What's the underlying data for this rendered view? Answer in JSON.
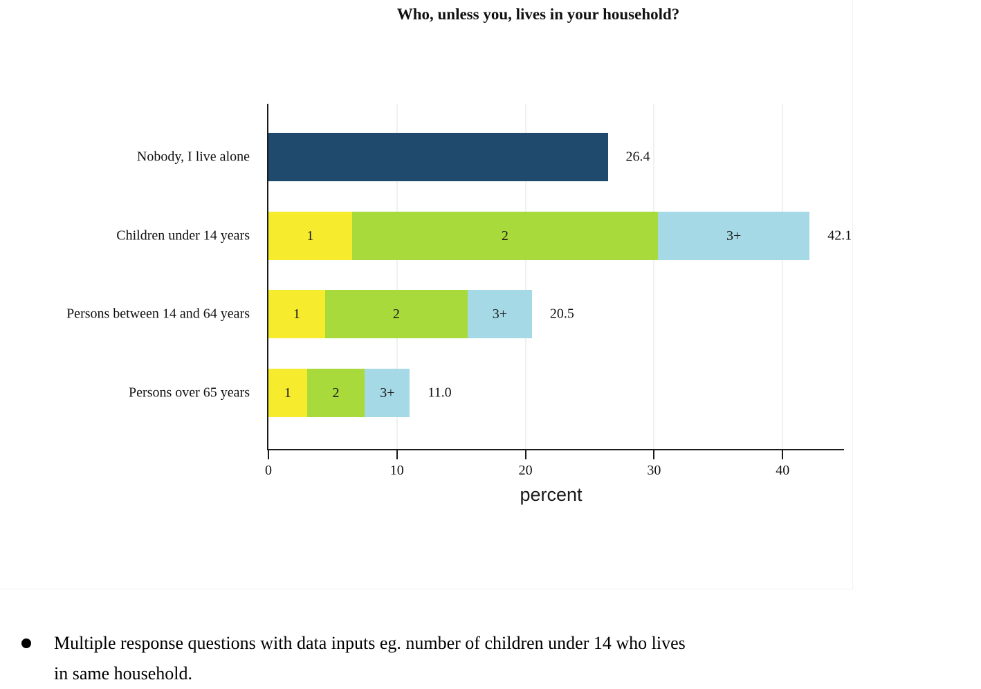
{
  "title": "Who, unless you, lives in your household?",
  "colors": {
    "navy": "#1f4a6e",
    "yellow": "#f7eb2d",
    "green": "#a9da3b",
    "blue": "#a6d9e6",
    "gridline": "#eef2ee",
    "axis": "#1a1a1a"
  },
  "chart_data": {
    "type": "bar",
    "orientation": "horizontal-stacked",
    "title": "Who, unless you, lives in your household?",
    "xlabel": "percent",
    "ylabel": "",
    "xlim": [
      0,
      44
    ],
    "xticks": [
      0,
      10,
      20,
      30,
      40
    ],
    "grid": "vertical",
    "legend": "none",
    "categories": [
      "Nobody, I live alone",
      "Children under 14 years",
      "Persons between 14 and 64 years",
      "Persons over 65 years"
    ],
    "totals": [
      26.4,
      42.1,
      20.5,
      11.0
    ],
    "rows": [
      {
        "category": "Nobody, I live alone",
        "total_label": "26.4",
        "segments": [
          {
            "label": "",
            "value": 26.4,
            "color": "navy"
          }
        ]
      },
      {
        "category": "Children under 14 years",
        "total_label": "42.1",
        "segments": [
          {
            "label": "1",
            "value": 6.5,
            "color": "yellow"
          },
          {
            "label": "2",
            "value": 23.8,
            "color": "green"
          },
          {
            "label": "3+",
            "value": 11.8,
            "color": "blue"
          }
        ]
      },
      {
        "category": "Persons between 14 and 64 years",
        "total_label": "20.5",
        "segments": [
          {
            "label": "1",
            "value": 4.4,
            "color": "yellow"
          },
          {
            "label": "2",
            "value": 11.1,
            "color": "green"
          },
          {
            "label": "3+",
            "value": 5.0,
            "color": "blue"
          }
        ]
      },
      {
        "category": "Persons over 65 years",
        "total_label": "11.0",
        "segments": [
          {
            "label": "1",
            "value": 3.0,
            "color": "yellow"
          },
          {
            "label": "2",
            "value": 4.5,
            "color": "green"
          },
          {
            "label": "3+",
            "value": 3.5,
            "color": "blue"
          }
        ]
      }
    ]
  },
  "note": {
    "lines": [
      "Multiple response questions with data inputs eg. number of children under 14 who lives",
      "in same household."
    ]
  }
}
